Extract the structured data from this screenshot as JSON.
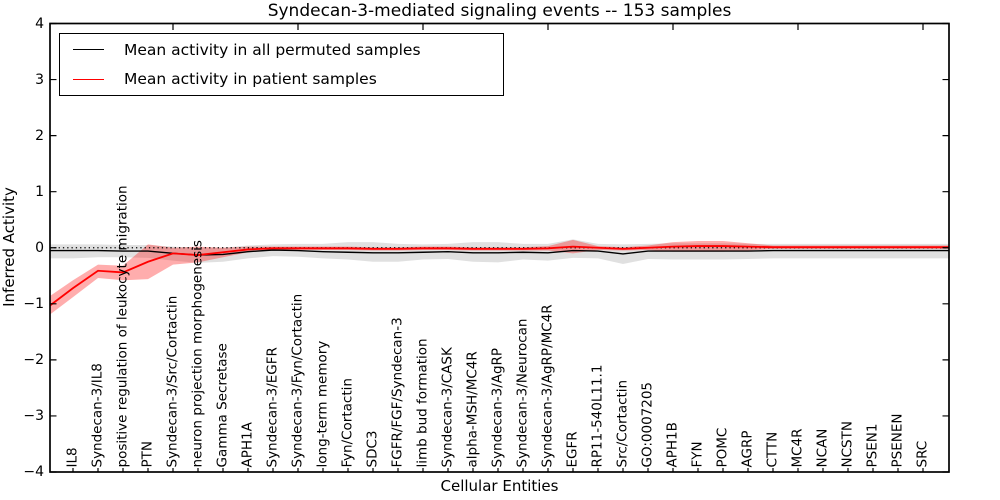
{
  "title": "Syndecan-3-mediated signaling events -- 153 samples",
  "legend": {
    "entries": [
      {
        "label": "Mean activity in all permuted samples",
        "color": "#000000"
      },
      {
        "label": "Mean activity in patient samples",
        "color": "#ff0000"
      }
    ]
  },
  "axes": {
    "ylabel": "Inferred Activity",
    "xlabel": "Cellular Entities"
  },
  "chart_data": {
    "type": "line",
    "title": "Syndecan-3-mediated signaling events -- 153 samples",
    "xlabel": "Cellular Entities",
    "ylabel": "Inferred Activity",
    "ylim": [
      -4,
      4
    ],
    "grid": false,
    "legend_position": "upper left",
    "zero_line_style": "dotted",
    "yticks": {
      "values": [
        4,
        3,
        2,
        1,
        0,
        -1,
        -2,
        -3,
        -4
      ],
      "labels": [
        "4",
        "3",
        "2",
        "1",
        "0",
        "−1",
        "−2",
        "−3",
        "−4"
      ]
    },
    "categories": [
      "IL8",
      "Syndecan-3/IL8",
      "positive regulation of leukocyte migration",
      "PTN",
      "Syndecan-3/Src/Cortactin",
      "neuron projection morphogenesis",
      "Gamma Secretase",
      "APH1A",
      "Syndecan-3/EGFR",
      "Syndecan-3/Fyn/Cortactin",
      "long-term memory",
      "Fyn/Cortactin",
      "SDC3",
      "FGFR/FGF/Syndecan-3",
      "limb bud formation",
      "Syndecan-3/CASK",
      "alpha-MSH/MC4R",
      "Syndecan-3/AgRP",
      "Syndecan-3/Neurocan",
      "Syndecan-3/AgRP/MC4R",
      "EGFR",
      "RP11-540L11.1",
      "Src/Cortactin",
      "GO:0007205",
      "APH1B",
      "FYN",
      "POMC",
      "AGRP",
      "CTTN",
      "MC4R",
      "NCAN",
      "NCSTN",
      "PSEN1",
      "PSENEN",
      "SRC"
    ],
    "series": [
      {
        "name": "Mean activity in all permuted samples",
        "color": "#000000",
        "line_width": 1.4,
        "band_color": "rgba(0,0,0,0.12)",
        "values": [
          -0.05,
          -0.05,
          -0.06,
          -0.06,
          -0.1,
          -0.13,
          -0.12,
          -0.07,
          -0.04,
          -0.05,
          -0.07,
          -0.08,
          -0.09,
          -0.09,
          -0.08,
          -0.07,
          -0.09,
          -0.09,
          -0.08,
          -0.09,
          -0.05,
          -0.06,
          -0.11,
          -0.06,
          -0.06,
          -0.06,
          -0.06,
          -0.06,
          -0.05,
          -0.05,
          -0.05,
          -0.05,
          -0.05,
          -0.05,
          -0.05
        ],
        "band_upper": [
          0.06,
          0.06,
          0.05,
          0.05,
          0.02,
          0.0,
          0.0,
          0.04,
          0.06,
          0.07,
          0.07,
          0.1,
          0.1,
          0.07,
          0.06,
          0.07,
          0.1,
          0.1,
          0.07,
          0.07,
          0.15,
          0.07,
          0.06,
          0.07,
          0.08,
          0.08,
          0.08,
          0.07,
          0.07,
          0.07,
          0.07,
          0.07,
          0.07,
          0.07,
          0.07
        ],
        "band_lower": [
          -0.19,
          -0.17,
          -0.17,
          -0.18,
          -0.23,
          -0.27,
          -0.25,
          -0.19,
          -0.15,
          -0.16,
          -0.19,
          -0.21,
          -0.25,
          -0.25,
          -0.21,
          -0.2,
          -0.25,
          -0.26,
          -0.21,
          -0.23,
          -0.18,
          -0.19,
          -0.29,
          -0.2,
          -0.21,
          -0.21,
          -0.21,
          -0.2,
          -0.19,
          -0.19,
          -0.19,
          -0.19,
          -0.19,
          -0.19,
          -0.19
        ],
        "edge_left": {
          "value": -0.05,
          "upper": 0.06,
          "lower": -0.19
        },
        "edge_right": {
          "value": -0.05,
          "upper": 0.07,
          "lower": -0.19
        }
      },
      {
        "name": "Mean activity in patient samples",
        "color": "#ff0000",
        "line_width": 1.8,
        "band_color": "rgba(255,0,0,0.32)",
        "values": [
          -0.72,
          -0.41,
          -0.44,
          -0.25,
          -0.1,
          -0.13,
          -0.08,
          -0.03,
          -0.01,
          -0.01,
          -0.01,
          -0.01,
          -0.02,
          -0.02,
          -0.01,
          -0.01,
          -0.02,
          -0.02,
          -0.02,
          -0.01,
          0.02,
          0.0,
          -0.02,
          0.0,
          0.02,
          0.03,
          0.03,
          0.02,
          0.01,
          0.01,
          0.01,
          0.01,
          0.01,
          0.01,
          0.01
        ],
        "band_upper": [
          -0.58,
          -0.3,
          -0.32,
          0.06,
          0.0,
          0.02,
          0.0,
          0.02,
          0.02,
          0.02,
          0.02,
          0.02,
          0.01,
          0.01,
          0.02,
          0.02,
          0.01,
          0.01,
          0.01,
          0.03,
          0.14,
          0.03,
          0.01,
          0.04,
          0.1,
          0.12,
          0.12,
          0.08,
          0.04,
          0.04,
          0.04,
          0.04,
          0.04,
          0.04,
          0.04
        ],
        "band_lower": [
          -0.88,
          -0.54,
          -0.58,
          -0.56,
          -0.3,
          -0.26,
          -0.17,
          -0.08,
          -0.04,
          -0.04,
          -0.04,
          -0.04,
          -0.05,
          -0.05,
          -0.04,
          -0.04,
          -0.05,
          -0.05,
          -0.05,
          -0.05,
          -0.1,
          -0.04,
          -0.05,
          -0.04,
          -0.07,
          -0.07,
          -0.07,
          -0.05,
          -0.02,
          -0.02,
          -0.02,
          -0.02,
          -0.02,
          -0.02,
          -0.02
        ],
        "edge_left": {
          "value": -1.03,
          "upper": -0.86,
          "lower": -1.19
        },
        "edge_right": {
          "value": 0.01,
          "upper": 0.04,
          "lower": -0.02
        }
      }
    ]
  }
}
